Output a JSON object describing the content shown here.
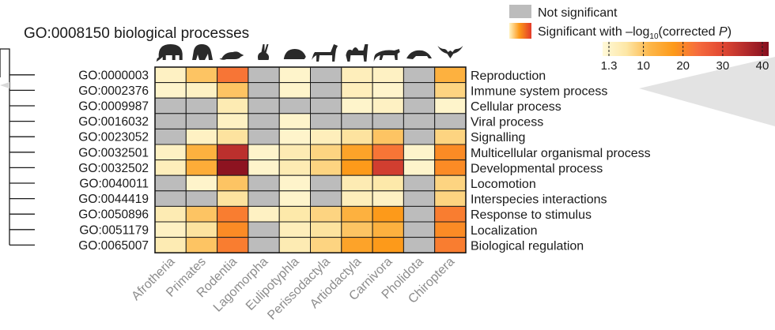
{
  "chart_data": {
    "type": "heatmap",
    "title": "GO:0008150 biological processes",
    "columns": [
      "Afrotheria",
      "Primates",
      "Rodentia",
      "Lagomorpha",
      "Eulipotyphla",
      "Perissodactyla",
      "Artiodactyla",
      "Carnivora",
      "Pholidota",
      "Chiroptera"
    ],
    "column_icons": [
      "elephant-icon",
      "gorilla-icon",
      "rat-icon",
      "rabbit-icon",
      "hedgehog-icon",
      "horse-icon",
      "camel-icon",
      "cheetah-icon",
      "pangolin-icon",
      "bat-icon"
    ],
    "rows": [
      {
        "go_id": "GO:0000003",
        "term": "Reproduction",
        "values": [
          4,
          12,
          25,
          null,
          3,
          null,
          5,
          4,
          null,
          15
        ]
      },
      {
        "go_id": "GO:0002376",
        "term": "Immune system process",
        "values": [
          3,
          4,
          12,
          null,
          3,
          null,
          5,
          3,
          null,
          10
        ]
      },
      {
        "go_id": "GO:0009987",
        "term": "Cellular process",
        "values": [
          null,
          null,
          6,
          null,
          null,
          null,
          3,
          4,
          null,
          3
        ]
      },
      {
        "go_id": "GO:0016032",
        "term": "Viral process",
        "values": [
          null,
          null,
          4,
          null,
          3,
          null,
          null,
          null,
          null,
          null
        ]
      },
      {
        "go_id": "GO:0023052",
        "term": "Signalling",
        "values": [
          null,
          4,
          8,
          null,
          3,
          5,
          8,
          12,
          null,
          10
        ]
      },
      {
        "go_id": "GO:0032501",
        "term": "Multicellular organismal process",
        "values": [
          4,
          15,
          38,
          3,
          6,
          10,
          18,
          25,
          3,
          22
        ]
      },
      {
        "go_id": "GO:0032502",
        "term": "Developmental process",
        "values": [
          5,
          16,
          44,
          3,
          6,
          10,
          20,
          35,
          3,
          22
        ]
      },
      {
        "go_id": "GO:0040011",
        "term": "Locomotion",
        "values": [
          null,
          3,
          12,
          null,
          3,
          null,
          6,
          7,
          null,
          10
        ]
      },
      {
        "go_id": "GO:0044419",
        "term": "Interspecies interactions",
        "values": [
          null,
          null,
          8,
          null,
          3,
          null,
          5,
          4,
          null,
          10
        ]
      },
      {
        "go_id": "GO:0050896",
        "term": "Response to stimulus",
        "values": [
          6,
          12,
          24,
          4,
          7,
          10,
          15,
          20,
          null,
          24
        ]
      },
      {
        "go_id": "GO:0051179",
        "term": "Localization",
        "values": [
          4,
          8,
          22,
          null,
          5,
          8,
          12,
          15,
          null,
          22
        ]
      },
      {
        "go_id": "GO:0065007",
        "term": "Biological regulation",
        "values": [
          6,
          12,
          24,
          null,
          6,
          10,
          18,
          20,
          null,
          24
        ]
      }
    ],
    "legend": {
      "not_significant": "Not significant",
      "significant_pre": "Significant with –log",
      "significant_sub": "10",
      "significant_mid": "(corrected ",
      "significant_p": "P",
      "significant_post": ")",
      "ticks": [
        1.3,
        10,
        20,
        30,
        40
      ],
      "tick_labels": [
        "1.3",
        "10",
        "20",
        "30",
        "40"
      ],
      "range": [
        1.3,
        45
      ]
    },
    "colors": {
      "not_significant": "#bcbcbc",
      "scale": [
        "#fff9d9",
        "#fde7a6",
        "#fdb648",
        "#fd9a1a",
        "#f66c3d",
        "#e34a33",
        "#b52c2c",
        "#850e1e"
      ]
    }
  }
}
